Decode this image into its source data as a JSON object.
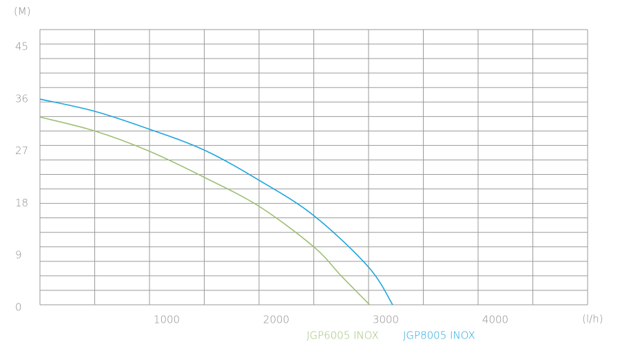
{
  "chart_data": {
    "type": "line",
    "y_label": "(M)",
    "x_label": "(l/h)",
    "xlim": [
      0,
      5000
    ],
    "xticks": [
      1000,
      2000,
      3000,
      4000
    ],
    "x_grid": [
      0,
      500,
      1000,
      1500,
      2000,
      2500,
      3000,
      3500,
      4000,
      4500,
      5000
    ],
    "ylim": [
      0,
      47.5
    ],
    "yticks": [
      0,
      9,
      18,
      27,
      36,
      45
    ],
    "y_grid": [
      0,
      2.5,
      5,
      7.5,
      10,
      12.5,
      15,
      17.5,
      20,
      22.5,
      25,
      27.5,
      30,
      32.5,
      35,
      37.5,
      40,
      42.5,
      45,
      47.5
    ],
    "grid": true,
    "series": [
      {
        "name": "JGP6005 INOX",
        "color": "#9dbf72",
        "x": [
          0,
          500,
          1000,
          1500,
          2000,
          2500,
          2750,
          3010
        ],
        "values": [
          32.4,
          30,
          26.5,
          22,
          17,
          10,
          5,
          0
        ]
      },
      {
        "name": "JGP8005 INOX",
        "color": "#1ba4dd",
        "x": [
          0,
          500,
          1000,
          1500,
          2000,
          2500,
          3000,
          3220
        ],
        "values": [
          35.5,
          33.4,
          30.3,
          26.7,
          21.5,
          15.4,
          6.5,
          0
        ]
      }
    ]
  }
}
